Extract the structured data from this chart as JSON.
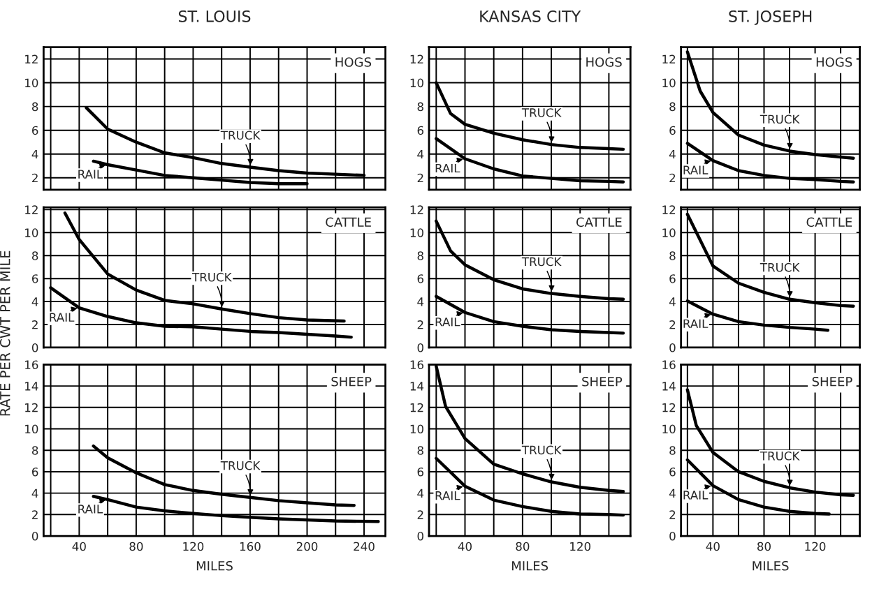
{
  "chart_data": [
    {
      "type": "line",
      "title": "ST. LOUIS",
      "annotations": [
        "HOGS"
      ],
      "tick_labels": "y",
      "grid": true,
      "xlim": [
        15,
        255
      ],
      "ylim": [
        1,
        13
      ],
      "xticks": [
        {
          "value": 20,
          "label": null
        },
        40,
        {
          "value": 60,
          "label": null
        },
        80,
        {
          "value": 100,
          "label": null
        },
        120,
        {
          "value": 140,
          "label": null
        },
        160,
        {
          "value": 180,
          "label": null
        },
        200,
        {
          "value": 220,
          "label": null
        },
        240
      ],
      "yticks": [
        2,
        4,
        6,
        8,
        10,
        12
      ],
      "series": [
        {
          "name": "TRUCK",
          "color": "#000000",
          "x": [
            45,
            60,
            80,
            100,
            120,
            140,
            160,
            180,
            200,
            220,
            240
          ],
          "values": [
            7.9,
            6.1,
            5.0,
            4.1,
            3.7,
            3.2,
            2.9,
            2.6,
            2.4,
            2.3,
            2.2
          ]
        },
        {
          "name": "RAIL",
          "color": "#000000",
          "x": [
            50,
            60,
            80,
            100,
            120,
            140,
            160,
            180,
            200
          ],
          "values": [
            3.4,
            3.1,
            2.65,
            2.2,
            2.0,
            1.8,
            1.6,
            1.5,
            1.5
          ]
        }
      ]
    },
    {
      "type": "line",
      "title": "KANSAS CITY",
      "annotations": [
        "HOGS"
      ],
      "tick_labels": "y",
      "grid": true,
      "xlim": [
        15,
        155
      ],
      "ylim": [
        1,
        13
      ],
      "xticks": [
        {
          "value": 20,
          "label": null
        },
        40,
        {
          "value": 60,
          "label": null
        },
        80,
        {
          "value": 100,
          "label": null
        },
        120,
        {
          "value": 140,
          "label": null
        }
      ],
      "yticks": [
        2,
        4,
        6,
        8,
        10,
        12
      ],
      "series": [
        {
          "name": "TRUCK",
          "color": "#000000",
          "x": [
            20,
            30,
            40,
            60,
            80,
            100,
            120,
            140,
            150
          ],
          "values": [
            10.0,
            7.4,
            6.5,
            5.75,
            5.2,
            4.8,
            4.55,
            4.45,
            4.4
          ]
        },
        {
          "name": "RAIL",
          "color": "#000000",
          "x": [
            20,
            40,
            60,
            80,
            100,
            120,
            140,
            150
          ],
          "values": [
            5.3,
            3.6,
            2.75,
            2.15,
            1.95,
            1.75,
            1.7,
            1.65
          ]
        }
      ]
    },
    {
      "type": "line",
      "title": "ST. JOSEPH",
      "annotations": [
        "HOGS"
      ],
      "tick_labels": "y",
      "grid": true,
      "xlim": [
        15,
        155
      ],
      "ylim": [
        1,
        13
      ],
      "xticks": [
        {
          "value": 20,
          "label": null
        },
        40,
        {
          "value": 60,
          "label": null
        },
        80,
        {
          "value": 100,
          "label": null
        },
        120,
        {
          "value": 140,
          "label": null
        }
      ],
      "yticks": [
        2,
        4,
        6,
        8,
        10,
        12
      ],
      "series": [
        {
          "name": "TRUCK",
          "color": "#000000",
          "x": [
            20,
            30,
            40,
            60,
            80,
            100,
            120,
            140,
            150
          ],
          "values": [
            12.6,
            9.3,
            7.5,
            5.6,
            4.75,
            4.25,
            3.95,
            3.75,
            3.65
          ]
        },
        {
          "name": "RAIL",
          "color": "#000000",
          "x": [
            20,
            40,
            60,
            80,
            100,
            120,
            140,
            150
          ],
          "values": [
            4.9,
            3.45,
            2.6,
            2.2,
            1.95,
            1.85,
            1.7,
            1.65
          ]
        }
      ]
    },
    {
      "type": "line",
      "ylabel": "RATE PER CWT PER MILE",
      "annotations": [
        "CATTLE"
      ],
      "tick_labels": "y",
      "grid": true,
      "xlim": [
        15,
        255
      ],
      "ylim": [
        0,
        12.2
      ],
      "xticks": [
        {
          "value": 20,
          "label": null
        },
        40,
        {
          "value": 60,
          "label": null
        },
        80,
        {
          "value": 100,
          "label": null
        },
        120,
        {
          "value": 140,
          "label": null
        },
        160,
        {
          "value": 180,
          "label": null
        },
        200,
        {
          "value": 220,
          "label": null
        },
        240
      ],
      "yticks": [
        0,
        2,
        4,
        6,
        8,
        10,
        12
      ],
      "series": [
        {
          "name": "TRUCK",
          "color": "#000000",
          "x": [
            30,
            40,
            60,
            80,
            100,
            120,
            140,
            160,
            180,
            200,
            226
          ],
          "values": [
            11.7,
            9.4,
            6.4,
            5.0,
            4.1,
            3.8,
            3.35,
            2.95,
            2.6,
            2.4,
            2.3
          ]
        },
        {
          "name": "RAIL",
          "color": "#000000",
          "x": [
            20,
            40,
            60,
            80,
            100,
            120,
            140,
            160,
            180,
            200,
            220,
            231
          ],
          "values": [
            5.2,
            3.45,
            2.7,
            2.15,
            1.85,
            1.8,
            1.6,
            1.4,
            1.3,
            1.15,
            1.0,
            0.9
          ]
        }
      ]
    },
    {
      "type": "line",
      "annotations": [
        "CATTLE"
      ],
      "tick_labels": "y",
      "grid": true,
      "xlim": [
        15,
        155
      ],
      "ylim": [
        0,
        12.2
      ],
      "xticks": [
        {
          "value": 20,
          "label": null
        },
        40,
        {
          "value": 60,
          "label": null
        },
        80,
        {
          "value": 100,
          "label": null
        },
        120,
        {
          "value": 140,
          "label": null
        }
      ],
      "yticks": [
        0,
        2,
        4,
        6,
        8,
        10,
        12
      ],
      "series": [
        {
          "name": "TRUCK",
          "color": "#000000",
          "x": [
            20,
            30,
            40,
            60,
            80,
            100,
            120,
            140,
            150
          ],
          "values": [
            11.0,
            8.4,
            7.2,
            5.9,
            5.1,
            4.7,
            4.45,
            4.25,
            4.2
          ]
        },
        {
          "name": "RAIL",
          "color": "#000000",
          "x": [
            20,
            40,
            60,
            80,
            100,
            120,
            140,
            150
          ],
          "values": [
            4.45,
            3.05,
            2.25,
            1.85,
            1.55,
            1.4,
            1.3,
            1.25
          ]
        }
      ]
    },
    {
      "type": "line",
      "annotations": [
        "CATTLE"
      ],
      "tick_labels": "y",
      "grid": true,
      "xlim": [
        15,
        155
      ],
      "ylim": [
        0,
        12.2
      ],
      "xticks": [
        {
          "value": 20,
          "label": null
        },
        40,
        {
          "value": 60,
          "label": null
        },
        80,
        {
          "value": 100,
          "label": null
        },
        120,
        {
          "value": 140,
          "label": null
        }
      ],
      "yticks": [
        0,
        2,
        4,
        6,
        8,
        10,
        12
      ],
      "series": [
        {
          "name": "TRUCK",
          "color": "#000000",
          "x": [
            20,
            40,
            60,
            80,
            100,
            120,
            140,
            150
          ],
          "values": [
            11.6,
            7.1,
            5.6,
            4.8,
            4.2,
            3.9,
            3.65,
            3.6
          ]
        },
        {
          "name": "RAIL",
          "color": "#000000",
          "x": [
            20,
            40,
            60,
            80,
            100,
            120,
            130
          ],
          "values": [
            4.05,
            2.9,
            2.25,
            1.95,
            1.75,
            1.6,
            1.5
          ]
        }
      ]
    },
    {
      "type": "line",
      "xlabel": "MILES",
      "annotations": [
        "SHEEP"
      ],
      "grid": true,
      "xlim": [
        15,
        255
      ],
      "ylim": [
        0,
        16
      ],
      "xticks": [
        {
          "value": 20,
          "label": null
        },
        40,
        {
          "value": 60,
          "label": null
        },
        80,
        {
          "value": 100,
          "label": null
        },
        120,
        {
          "value": 140,
          "label": null
        },
        160,
        {
          "value": 180,
          "label": null
        },
        200,
        {
          "value": 220,
          "label": null
        },
        240
      ],
      "yticks": [
        0,
        2,
        4,
        6,
        8,
        10,
        12,
        14,
        16
      ],
      "series": [
        {
          "name": "TRUCK",
          "color": "#000000",
          "x": [
            50,
            60,
            80,
            100,
            120,
            140,
            160,
            180,
            200,
            220,
            233
          ],
          "values": [
            8.4,
            7.3,
            5.9,
            4.8,
            4.25,
            3.9,
            3.6,
            3.3,
            3.1,
            2.9,
            2.85
          ]
        },
        {
          "name": "RAIL",
          "color": "#000000",
          "x": [
            50,
            60,
            80,
            100,
            120,
            140,
            160,
            180,
            200,
            220,
            250
          ],
          "values": [
            3.7,
            3.4,
            2.7,
            2.35,
            2.1,
            1.9,
            1.75,
            1.6,
            1.5,
            1.4,
            1.35
          ]
        }
      ]
    },
    {
      "type": "line",
      "xlabel": "MILES",
      "annotations": [
        "SHEEP"
      ],
      "grid": true,
      "xlim": [
        15,
        155
      ],
      "ylim": [
        0,
        16
      ],
      "xticks": [
        {
          "value": 20,
          "label": null
        },
        40,
        {
          "value": 60,
          "label": null
        },
        80,
        {
          "value": 100,
          "label": null
        },
        120,
        {
          "value": 140,
          "label": null
        }
      ],
      "yticks": [
        0,
        2,
        4,
        6,
        8,
        10,
        12,
        14,
        16
      ],
      "series": [
        {
          "name": "TRUCK",
          "color": "#000000",
          "x": [
            20,
            26.5,
            40,
            60,
            80,
            100,
            120,
            140,
            150
          ],
          "values": [
            15.85,
            12.1,
            9.1,
            6.7,
            5.8,
            5.05,
            4.55,
            4.25,
            4.15
          ]
        },
        {
          "name": "RAIL",
          "color": "#000000",
          "x": [
            20,
            40,
            60,
            80,
            100,
            120,
            140,
            150
          ],
          "values": [
            7.25,
            4.65,
            3.35,
            2.75,
            2.3,
            2.05,
            2.0,
            1.95
          ]
        }
      ]
    },
    {
      "type": "line",
      "xlabel": "MILES",
      "annotations": [
        "SHEEP"
      ],
      "grid": true,
      "xlim": [
        15,
        155
      ],
      "ylim": [
        0,
        16
      ],
      "xticks": [
        {
          "value": 20,
          "label": null
        },
        40,
        {
          "value": 60,
          "label": null
        },
        80,
        {
          "value": 100,
          "label": null
        },
        120,
        {
          "value": 140,
          "label": null
        }
      ],
      "yticks": [
        0,
        2,
        4,
        6,
        8,
        10,
        12,
        14,
        16
      ],
      "series": [
        {
          "name": "TRUCK",
          "color": "#000000",
          "x": [
            20,
            27,
            40,
            60,
            80,
            100,
            120,
            140,
            150
          ],
          "values": [
            13.65,
            10.3,
            7.8,
            6.0,
            5.1,
            4.5,
            4.1,
            3.85,
            3.8
          ]
        },
        {
          "name": "RAIL",
          "color": "#000000",
          "x": [
            20,
            40,
            60,
            80,
            100,
            120,
            131
          ],
          "values": [
            7.1,
            4.7,
            3.4,
            2.7,
            2.3,
            2.1,
            2.05
          ]
        }
      ]
    }
  ]
}
